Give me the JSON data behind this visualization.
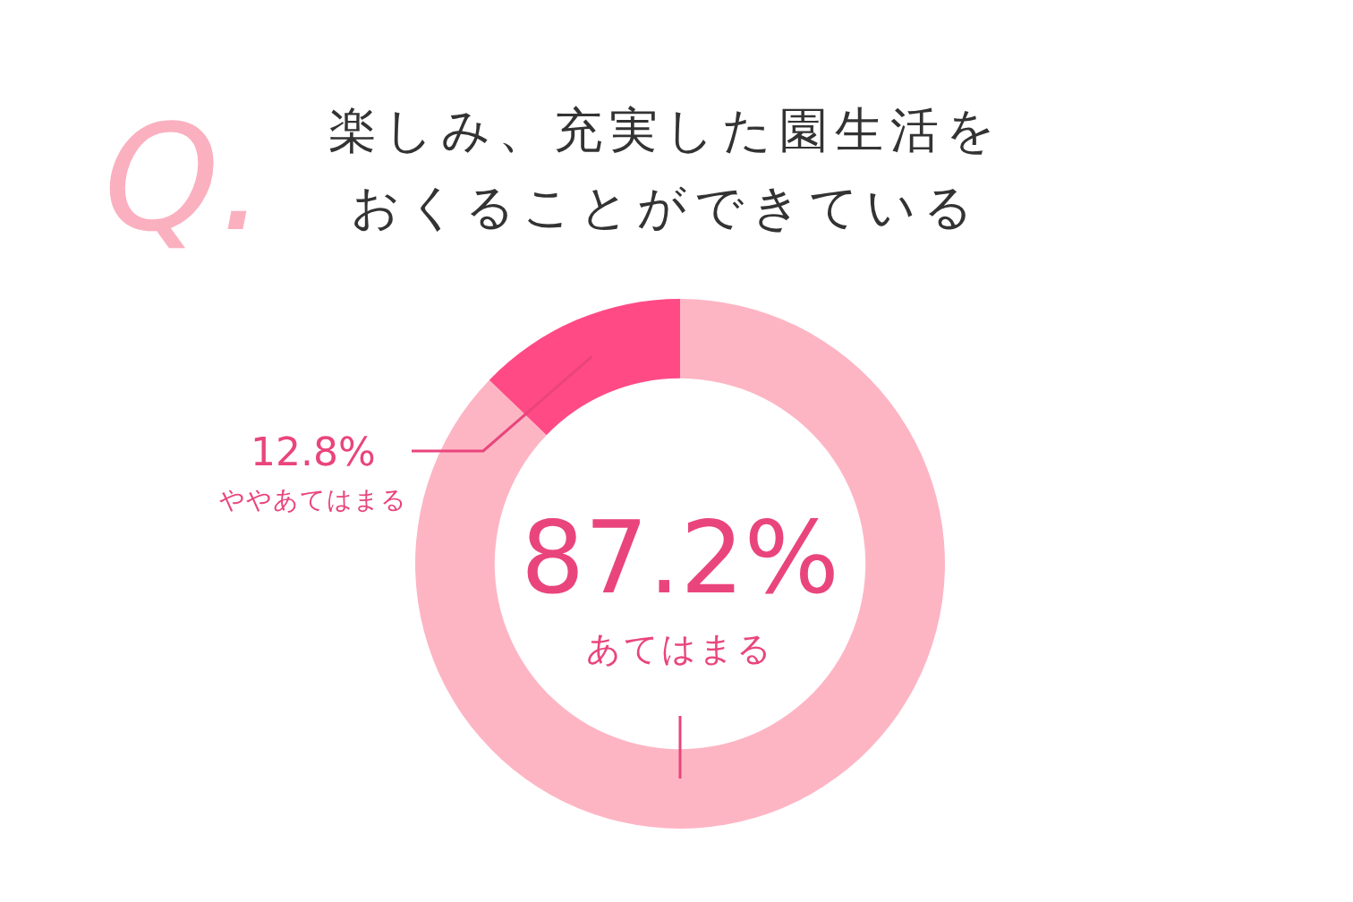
{
  "chart_data": {
    "type": "donut",
    "title": "楽しみ、充実した園生活をおくることができている",
    "annotations": [
      "Q."
    ],
    "categories": [
      "あてはまる",
      "ややあてはまる"
    ],
    "values": [
      87.2,
      12.8
    ],
    "colors": [
      "#fdb5c4",
      "#ff4a86"
    ],
    "value_labels": [
      "87.2%",
      "12.8%"
    ]
  }
}
